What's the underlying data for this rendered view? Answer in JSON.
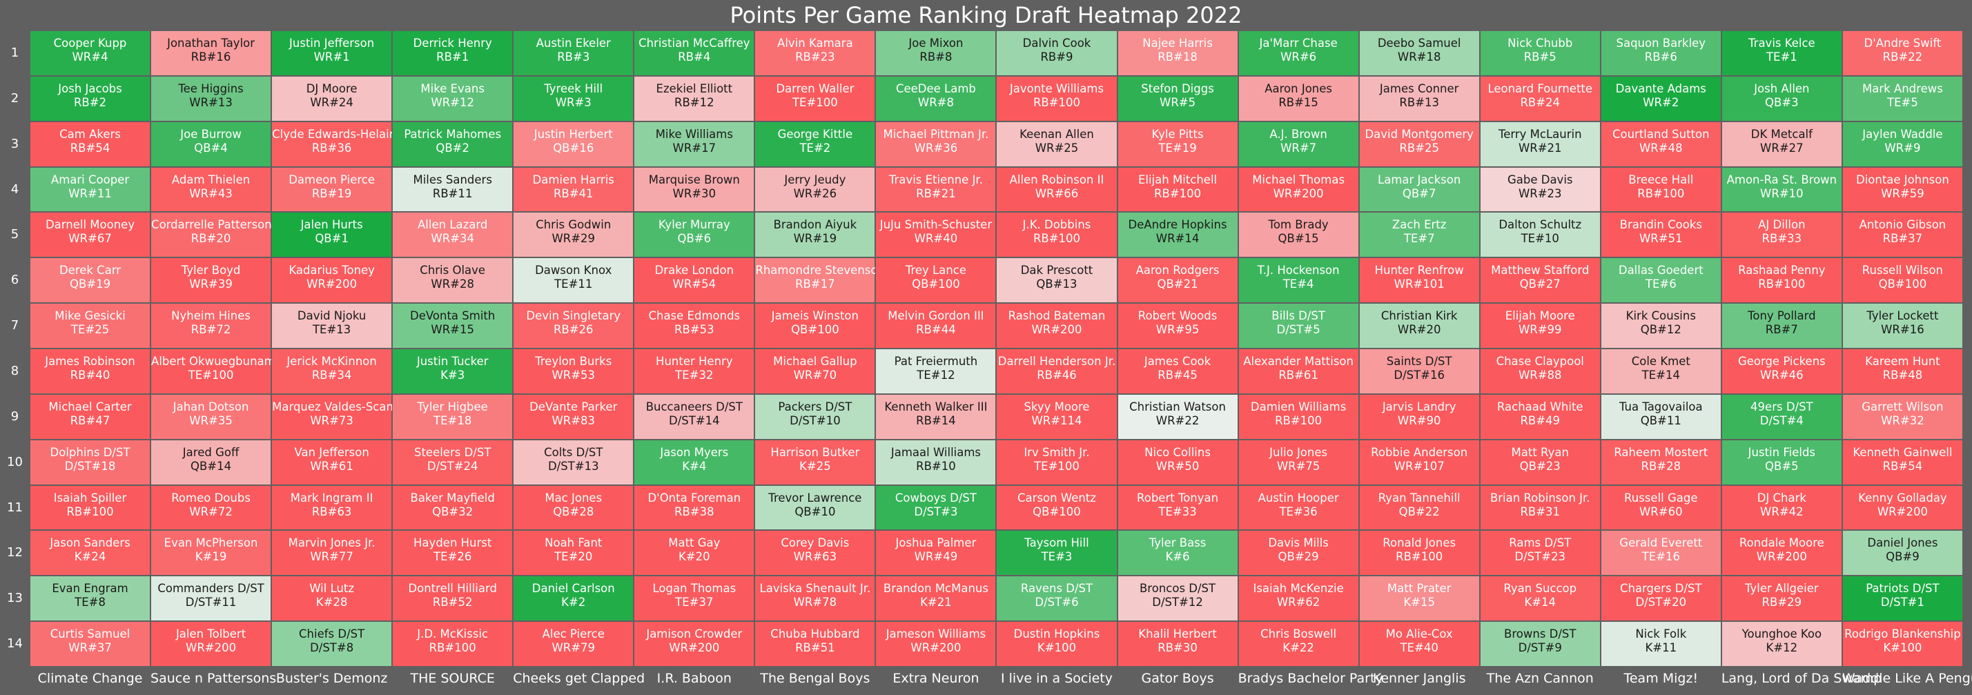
{
  "chart_data": {
    "type": "heatmap",
    "title": "Points Per Game Ranking Draft Heatmap 2022",
    "row_labels": [
      "1",
      "2",
      "3",
      "4",
      "5",
      "6",
      "7",
      "8",
      "9",
      "10",
      "11",
      "12",
      "13",
      "14"
    ],
    "col_labels": [
      "Climate Change",
      "Sauce n Pattersons",
      "Buster's Demonz",
      "THE SOURCE",
      "Cheeks get  Clapped",
      "I.R. Baboon",
      "The Bengal  Boys",
      "Extra  Neuron",
      "I live in a Society",
      "Gator  Boys",
      "Bradys Bachelor Party",
      "Kenner Janglis",
      "The Azn Cannon",
      "Team Migz!",
      "Lang, Lord of Da Swamp",
      "Waddle Like A Penguin"
    ],
    "color_scale": {
      "good": "#1aaa42",
      "neutral": "#f2f2f2",
      "bad": "#fa5a5d"
    },
    "cells": [
      [
        [
          "Cooper Kupp",
          "WR#4",
          0.92
        ],
        [
          "Jonathan Taylor",
          "RB#16",
          -0.45
        ],
        [
          "Justin Jefferson",
          "WR#1",
          0.98
        ],
        [
          "Derrick Henry",
          "RB#1",
          0.98
        ],
        [
          "Austin Ekeler",
          "RB#3",
          0.9
        ],
        [
          "Christian McCaffrey",
          "RB#4",
          0.88
        ],
        [
          "Alvin Kamara",
          "RB#23",
          -0.8
        ],
        [
          "Joe Mixon",
          "RB#8",
          0.45
        ],
        [
          "Dalvin Cook",
          "RB#9",
          0.32
        ],
        [
          "Najee Harris",
          "RB#18",
          -0.55
        ],
        [
          "Ja'Marr Chase",
          "WR#6",
          0.85
        ],
        [
          "Deebo Samuel",
          "WR#18",
          0.3
        ],
        [
          "Nick Chubb",
          "RB#5",
          0.72
        ],
        [
          "Saquon Barkley",
          "RB#6",
          0.68
        ],
        [
          "Travis Kelce",
          "TE#1",
          0.98
        ],
        [
          "D'Andre Swift",
          "RB#22",
          -0.85
        ]
      ],
      [
        [
          "Josh Jacobs",
          "RB#2",
          0.95
        ],
        [
          "Tee Higgins",
          "WR#13",
          0.55
        ],
        [
          "DJ Moore",
          "WR#24",
          -0.2
        ],
        [
          "Mike Evans",
          "WR#12",
          0.62
        ],
        [
          "Tyreek Hill",
          "WR#3",
          0.92
        ],
        [
          "Ezekiel Elliott",
          "RB#12",
          -0.2
        ],
        [
          "Darren Waller",
          "TE#100",
          -1
        ],
        [
          "CeeDee Lamb",
          "WR#8",
          0.8
        ],
        [
          "Javonte Williams",
          "RB#100",
          -1
        ],
        [
          "Stefon Diggs",
          "WR#5",
          0.88
        ],
        [
          "Aaron Jones",
          "RB#15",
          -0.4
        ],
        [
          "James Conner",
          "RB#13",
          -0.25
        ],
        [
          "Leonard Fournette",
          "RB#24",
          -0.95
        ],
        [
          "Davante Adams",
          "WR#2",
          1
        ],
        [
          "Josh Allen",
          "QB#3",
          0.85
        ],
        [
          "Mark Andrews",
          "TE#5",
          0.65
        ]
      ],
      [
        [
          "Cam Akers",
          "RB#54",
          -1
        ],
        [
          "Joe Burrow",
          "QB#4",
          0.8
        ],
        [
          "Clyde Edwards-Helaire",
          "RB#36",
          -0.95
        ],
        [
          "Patrick Mahomes",
          "QB#2",
          0.88
        ],
        [
          "Justin Herbert",
          "QB#16",
          -0.6
        ],
        [
          "Mike Williams",
          "WR#17",
          0.38
        ],
        [
          "George Kittle",
          "TE#2",
          0.9
        ],
        [
          "Michael Pittman Jr.",
          "WR#36",
          -0.75
        ],
        [
          "Keenan Allen",
          "WR#25",
          -0.2
        ],
        [
          "Kyle Pitts",
          "TE#19",
          -0.85
        ],
        [
          "A.J. Brown",
          "WR#7",
          0.8
        ],
        [
          "David Montgomery",
          "RB#25",
          -0.85
        ],
        [
          "Terry McLaurin",
          "WR#21",
          0.12
        ],
        [
          "Courtland Sutton",
          "WR#48",
          -0.95
        ],
        [
          "DK Metcalf",
          "WR#27",
          -0.28
        ],
        [
          "Jaylen Waddle",
          "WR#9",
          0.75
        ]
      ],
      [
        [
          "Amari Cooper",
          "WR#11",
          0.6
        ],
        [
          "Adam Thielen",
          "WR#43",
          -0.95
        ],
        [
          "Dameon Pierce",
          "RB#19",
          -0.8
        ],
        [
          "Miles Sanders",
          "RB#11",
          0.05
        ],
        [
          "Damien Harris",
          "RB#41",
          -0.9
        ],
        [
          "Marquise Brown",
          "WR#30",
          -0.35
        ],
        [
          "Jerry Jeudy",
          "WR#26",
          -0.25
        ],
        [
          "Travis Etienne Jr.",
          "RB#21",
          -0.9
        ],
        [
          "Allen Robinson II",
          "WR#66",
          -1
        ],
        [
          "Elijah Mitchell",
          "RB#100",
          -1
        ],
        [
          "Michael Thomas",
          "WR#200",
          -1
        ],
        [
          "Lamar Jackson",
          "QB#7",
          0.6
        ],
        [
          "Gabe Davis",
          "WR#23",
          -0.1
        ],
        [
          "Breece Hall",
          "RB#100",
          -1
        ],
        [
          "Amon-Ra St. Brown",
          "WR#10",
          0.72
        ],
        [
          "Diontae Johnson",
          "WR#59",
          -1
        ]
      ],
      [
        [
          "Darnell Mooney",
          "WR#67",
          -1
        ],
        [
          "Cordarrelle Patterson",
          "RB#20",
          -0.85
        ],
        [
          "Jalen Hurts",
          "QB#1",
          1
        ],
        [
          "Allen Lazard",
          "WR#34",
          -0.65
        ],
        [
          "Chris Godwin",
          "WR#29",
          -0.3
        ],
        [
          "Kyler Murray",
          "QB#6",
          0.72
        ],
        [
          "Brandon Aiyuk",
          "WR#19",
          0.28
        ],
        [
          "JuJu Smith-Schuster",
          "WR#40",
          -1
        ],
        [
          "J.K. Dobbins",
          "RB#100",
          -1
        ],
        [
          "DeAndre Hopkins",
          "WR#14",
          0.55
        ],
        [
          "Tom Brady",
          "QB#15",
          -0.4
        ],
        [
          "Zach Ertz",
          "TE#7",
          0.62
        ],
        [
          "Dalton Schultz",
          "TE#10",
          0.15
        ],
        [
          "Brandin Cooks",
          "WR#51",
          -1
        ],
        [
          "AJ Dillon",
          "RB#33",
          -0.95
        ],
        [
          "Antonio Gibson",
          "RB#37",
          -1
        ]
      ],
      [
        [
          "Derek Carr",
          "QB#19",
          -0.7
        ],
        [
          "Tyler Boyd",
          "WR#39",
          -1
        ],
        [
          "Kadarius Toney",
          "WR#200",
          -1
        ],
        [
          "Chris Olave",
          "WR#28",
          -0.3
        ],
        [
          "Dawson Knox",
          "TE#11",
          0.05
        ],
        [
          "Drake London",
          "WR#54",
          -1
        ],
        [
          "Rhamondre Stevenson",
          "RB#17",
          -0.65
        ],
        [
          "Trey Lance",
          "QB#100",
          -1
        ],
        [
          "Dak Prescott",
          "QB#13",
          -0.15
        ],
        [
          "Aaron Rodgers",
          "QB#21",
          -0.95
        ],
        [
          "T.J. Hockenson",
          "TE#4",
          0.82
        ],
        [
          "Hunter Renfrow",
          "WR#101",
          -1
        ],
        [
          "Matthew Stafford",
          "QB#27",
          -1
        ],
        [
          "Dallas Goedert",
          "TE#6",
          0.62
        ],
        [
          "Rashaad Penny",
          "RB#100",
          -1
        ],
        [
          "Russell Wilson",
          "QB#100",
          -1
        ]
      ],
      [
        [
          "Mike Gesicki",
          "TE#25",
          -0.8
        ],
        [
          "Nyheim Hines",
          "RB#72",
          -0.9
        ],
        [
          "David Njoku",
          "TE#13",
          -0.2
        ],
        [
          "DeVonta Smith",
          "WR#15",
          0.5
        ],
        [
          "Devin Singletary",
          "RB#26",
          -0.9
        ],
        [
          "Chase Edmonds",
          "RB#53",
          -1
        ],
        [
          "Jameis Winston",
          "QB#100",
          -1
        ],
        [
          "Melvin Gordon III",
          "RB#44",
          -1
        ],
        [
          "Rashod Bateman",
          "WR#200",
          -1
        ],
        [
          "Robert Woods",
          "WR#95",
          -1
        ],
        [
          "Bills D/ST",
          "D/ST#5",
          0.65
        ],
        [
          "Christian Kirk",
          "WR#20",
          0.25
        ],
        [
          "Elijah Moore",
          "WR#99",
          -1
        ],
        [
          "Kirk Cousins",
          "QB#12",
          -0.2
        ],
        [
          "Tony Pollard",
          "RB#7",
          0.55
        ],
        [
          "Tyler Lockett",
          "WR#16",
          0.3
        ]
      ],
      [
        [
          "James Robinson",
          "RB#40",
          -1
        ],
        [
          "Albert Okwuegbunam",
          "TE#100",
          -1
        ],
        [
          "Jerick McKinnon",
          "RB#34",
          -0.95
        ],
        [
          "Justin Tucker",
          "K#3",
          0.92
        ],
        [
          "Treylon Burks",
          "WR#53",
          -1
        ],
        [
          "Hunter Henry",
          "TE#32",
          -1
        ],
        [
          "Michael Gallup",
          "WR#70",
          -1
        ],
        [
          "Pat Freiermuth",
          "TE#12",
          0.05
        ],
        [
          "Darrell Henderson Jr.",
          "RB#46",
          -1
        ],
        [
          "James Cook",
          "RB#45",
          -1
        ],
        [
          "Alexander Mattison",
          "RB#61",
          -1
        ],
        [
          "Saints D/ST",
          "D/ST#16",
          -0.45
        ],
        [
          "Chase Claypool",
          "WR#88",
          -1
        ],
        [
          "Cole Kmet",
          "TE#14",
          -0.28
        ],
        [
          "George Pickens",
          "WR#46",
          -1
        ],
        [
          "Kareem Hunt",
          "RB#48",
          -1
        ]
      ],
      [
        [
          "Michael Carter",
          "RB#47",
          -1
        ],
        [
          "Jahan Dotson",
          "WR#35",
          -0.75
        ],
        [
          "Marquez Valdes-Scantling",
          "WR#73",
          -1
        ],
        [
          "Tyler Higbee",
          "TE#18",
          -0.7
        ],
        [
          "DeVante Parker",
          "WR#83",
          -1
        ],
        [
          "Buccaneers D/ST",
          "D/ST#14",
          -0.25
        ],
        [
          "Packers D/ST",
          "D/ST#10",
          0.2
        ],
        [
          "Kenneth Walker III",
          "RB#14",
          -0.3
        ],
        [
          "Skyy Moore",
          "WR#114",
          -1
        ],
        [
          "Christian Watson",
          "WR#22",
          0.02
        ],
        [
          "Damien Williams",
          "RB#100",
          -1
        ],
        [
          "Jarvis Landry",
          "WR#90",
          -1
        ],
        [
          "Rachaad White",
          "RB#49",
          -1
        ],
        [
          "Tua Tagovailoa",
          "QB#11",
          0.05
        ],
        [
          "49ers D/ST",
          "D/ST#4",
          0.82
        ],
        [
          "Garrett Wilson",
          "WR#32",
          -0.7
        ]
      ],
      [
        [
          "Dolphins D/ST",
          "D/ST#18",
          -0.8
        ],
        [
          "Jared Goff",
          "QB#14",
          -0.3
        ],
        [
          "Van Jefferson",
          "WR#61",
          -1
        ],
        [
          "Steelers D/ST",
          "D/ST#24",
          -0.95
        ],
        [
          "Colts D/ST",
          "D/ST#13",
          -0.2
        ],
        [
          "Jason Myers",
          "K#4",
          0.75
        ],
        [
          "Harrison Butker",
          "K#25",
          -0.95
        ],
        [
          "Jamaal Williams",
          "RB#10",
          0.15
        ],
        [
          "Irv Smith Jr.",
          "TE#100",
          -1
        ],
        [
          "Nico Collins",
          "WR#50",
          -1
        ],
        [
          "Julio Jones",
          "WR#75",
          -1
        ],
        [
          "Robbie Anderson",
          "WR#107",
          -1
        ],
        [
          "Matt Ryan",
          "QB#23",
          -1
        ],
        [
          "Raheem Mostert",
          "RB#28",
          -0.95
        ],
        [
          "Justin Fields",
          "QB#5",
          0.72
        ],
        [
          "Kenneth Gainwell",
          "RB#54",
          -1
        ]
      ],
      [
        [
          "Isaiah Spiller",
          "RB#100",
          -1
        ],
        [
          "Romeo Doubs",
          "WR#72",
          -1
        ],
        [
          "Mark Ingram II",
          "RB#63",
          -1
        ],
        [
          "Baker Mayfield",
          "QB#32",
          -1
        ],
        [
          "Mac Jones",
          "QB#28",
          -1
        ],
        [
          "D'Onta Foreman",
          "RB#38",
          -1
        ],
        [
          "Trevor Lawrence",
          "QB#10",
          0.2
        ],
        [
          "Cowboys D/ST",
          "D/ST#3",
          0.85
        ],
        [
          "Carson Wentz",
          "QB#100",
          -1
        ],
        [
          "Robert Tonyan",
          "TE#33",
          -1
        ],
        [
          "Austin Hooper",
          "TE#36",
          -1
        ],
        [
          "Ryan Tannehill",
          "QB#22",
          -1
        ],
        [
          "Brian Robinson Jr.",
          "RB#31",
          -1
        ],
        [
          "Russell Gage",
          "WR#60",
          -1
        ],
        [
          "DJ Chark",
          "WR#42",
          -1
        ],
        [
          "Kenny Golladay",
          "WR#200",
          -1
        ]
      ],
      [
        [
          "Jason Sanders",
          "K#24",
          -0.95
        ],
        [
          "Evan McPherson",
          "K#19",
          -0.85
        ],
        [
          "Marvin Jones Jr.",
          "WR#77",
          -1
        ],
        [
          "Hayden Hurst",
          "TE#26",
          -1
        ],
        [
          "Noah Fant",
          "TE#20",
          -1
        ],
        [
          "Matt Gay",
          "K#20",
          -1
        ],
        [
          "Corey Davis",
          "WR#63",
          -1
        ],
        [
          "Joshua Palmer",
          "WR#49",
          -1
        ],
        [
          "Taysom Hill",
          "TE#3",
          0.92
        ],
        [
          "Tyler Bass",
          "K#6",
          0.65
        ],
        [
          "Davis Mills",
          "QB#29",
          -1
        ],
        [
          "Ronald Jones",
          "RB#100",
          -1
        ],
        [
          "Rams D/ST",
          "D/ST#23",
          -1
        ],
        [
          "Gerald Everett",
          "TE#16",
          -0.62
        ],
        [
          "Rondale Moore",
          "WR#200",
          -1
        ],
        [
          "Daniel Jones",
          "QB#9",
          0.3
        ]
      ],
      [
        [
          "Evan Engram",
          "TE#8",
          0.35
        ],
        [
          "Commanders D/ST",
          "D/ST#11",
          0.05
        ],
        [
          "Wil Lutz",
          "K#28",
          -1
        ],
        [
          "Dontrell Hilliard",
          "RB#52",
          -1
        ],
        [
          "Daniel Carlson",
          "K#2",
          0.95
        ],
        [
          "Logan Thomas",
          "TE#37",
          -1
        ],
        [
          "Laviska Shenault Jr.",
          "WR#78",
          -1
        ],
        [
          "Brandon McManus",
          "K#21",
          -1
        ],
        [
          "Ravens D/ST",
          "D/ST#6",
          0.62
        ],
        [
          "Broncos D/ST",
          "D/ST#12",
          -0.15
        ],
        [
          "Isaiah McKenzie",
          "WR#62",
          -1
        ],
        [
          "Matt Prater",
          "K#15",
          -0.55
        ],
        [
          "Ryan Succop",
          "K#14",
          -0.95
        ],
        [
          "Chargers D/ST",
          "D/ST#20",
          -1
        ],
        [
          "Tyler Allgeier",
          "RB#29",
          -1
        ],
        [
          "Patriots D/ST",
          "D/ST#1",
          1
        ]
      ],
      [
        [
          "Curtis Samuel",
          "WR#37",
          -0.8
        ],
        [
          "Jalen Tolbert",
          "WR#200",
          -1
        ],
        [
          "Chiefs D/ST",
          "D/ST#8",
          0.38
        ],
        [
          "J.D. McKissic",
          "RB#100",
          -1
        ],
        [
          "Alec Pierce",
          "WR#79",
          -1
        ],
        [
          "Jamison Crowder",
          "WR#200",
          -1
        ],
        [
          "Chuba Hubbard",
          "RB#51",
          -1
        ],
        [
          "Jameson Williams",
          "WR#200",
          -1
        ],
        [
          "Dustin Hopkins",
          "K#100",
          -1
        ],
        [
          "Khalil Herbert",
          "RB#30",
          -1
        ],
        [
          "Chris Boswell",
          "K#22",
          -1
        ],
        [
          "Mo Alie-Cox",
          "TE#40",
          -1
        ],
        [
          "Browns D/ST",
          "D/ST#9",
          0.35
        ],
        [
          "Nick Folk",
          "K#11",
          0.05
        ],
        [
          "Younghoe Koo",
          "K#12",
          -0.2
        ],
        [
          "Rodrigo Blankenship",
          "K#100",
          -1
        ]
      ]
    ]
  }
}
